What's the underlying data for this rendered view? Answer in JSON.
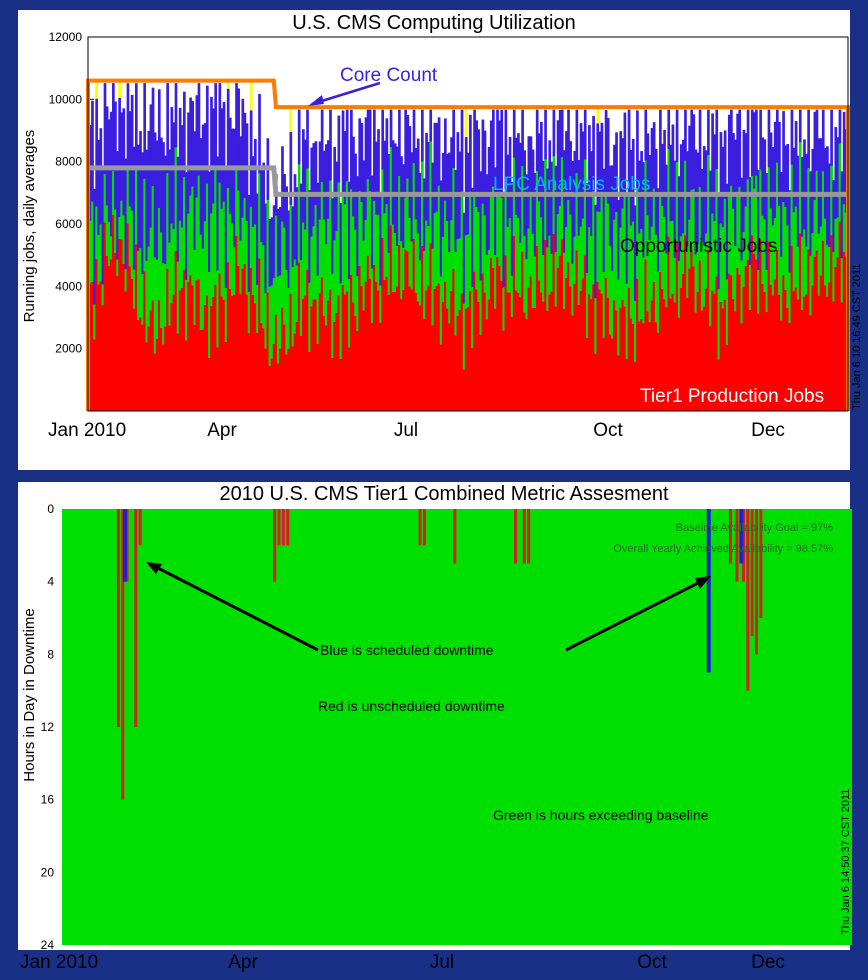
{
  "colors": {
    "background": "#1a2f86",
    "tier1": "#ff0000",
    "opportunistic": "#00e000",
    "lpc": "#3a1fe0",
    "grey_line": "#999999",
    "orange_line": "#ff7a00",
    "yellow": "#ffff00",
    "metric_green": "#00e000",
    "metric_red": "#d42020",
    "metric_blue": "#2020d0",
    "annotation_core": "#3a1fe0",
    "annotation_lpc": "#00b4ff"
  },
  "chart_data": [
    {
      "type": "area",
      "title": "U.S. CMS Computing Utilization",
      "ylabel": "Running jobs, daily averages",
      "xlabel": "",
      "xlim": [
        "2010-01-01",
        "2010-12-31"
      ],
      "ylim": [
        0,
        12000
      ],
      "yticks": [
        2000,
        4000,
        6000,
        8000,
        10000,
        12000
      ],
      "xticks": [
        "Jan 2010",
        "Apr",
        "Jul",
        "Oct",
        "Dec"
      ],
      "xtick_dates": [
        "2010-01-01",
        "2010-04-01",
        "2010-07-01",
        "2010-10-01",
        "2010-12-01"
      ],
      "timestamp": "Thu Jan  6 10:16:49 CST 2011",
      "annotations": {
        "core_count": "Core Count",
        "lpc": "LPC Analysis Jobs",
        "opportunistic": "Opportunistic Jobs",
        "tier1": "Tier1 Production Jobs"
      },
      "series": [
        {
          "name": "Tier1 Production Jobs",
          "x": [
            "2010-01-01",
            "2010-01-15",
            "2010-02-01",
            "2010-02-15",
            "2010-03-01",
            "2010-03-15",
            "2010-04-01",
            "2010-04-15",
            "2010-05-01",
            "2010-05-15",
            "2010-06-01",
            "2010-06-15",
            "2010-07-01",
            "2010-07-15",
            "2010-08-01",
            "2010-08-15",
            "2010-09-01",
            "2010-09-15",
            "2010-10-01",
            "2010-10-15",
            "2010-11-01",
            "2010-11-15",
            "2010-12-01",
            "2010-12-15",
            "2010-12-31"
          ],
          "values": [
            3500,
            5500,
            2500,
            4000,
            3000,
            4500,
            2000,
            3500,
            3000,
            4000,
            4500,
            3800,
            3000,
            4200,
            3800,
            4500,
            3500,
            2800,
            3600,
            4500,
            3200,
            4600,
            3800,
            4300,
            4800
          ]
        },
        {
          "name": "Opportunistic Jobs",
          "x": [
            "2010-01-01",
            "2010-01-15",
            "2010-02-01",
            "2010-02-15",
            "2010-03-01",
            "2010-03-15",
            "2010-04-01",
            "2010-04-15",
            "2010-05-01",
            "2010-05-15",
            "2010-06-01",
            "2010-06-15",
            "2010-07-01",
            "2010-07-15",
            "2010-08-01",
            "2010-08-15",
            "2010-09-01",
            "2010-09-15",
            "2010-10-01",
            "2010-10-15",
            "2010-11-01",
            "2010-11-15",
            "2010-12-01",
            "2010-12-15",
            "2010-12-31"
          ],
          "values": [
            2000,
            900,
            3000,
            2300,
            3200,
            1800,
            2700,
            2400,
            3000,
            2200,
            1800,
            2500,
            2600,
            2000,
            2300,
            1800,
            2400,
            2900,
            2600,
            1700,
            2800,
            1900,
            2500,
            2000,
            1500
          ]
        },
        {
          "name": "LPC Analysis Jobs",
          "x": [
            "2010-01-01",
            "2010-01-15",
            "2010-02-01",
            "2010-02-15",
            "2010-03-01",
            "2010-03-15",
            "2010-04-01",
            "2010-04-15",
            "2010-05-01",
            "2010-05-15",
            "2010-06-01",
            "2010-06-15",
            "2010-07-01",
            "2010-07-15",
            "2010-08-01",
            "2010-08-15",
            "2010-09-01",
            "2010-09-15",
            "2010-10-01",
            "2010-10-15",
            "2010-11-01",
            "2010-11-15",
            "2010-12-01",
            "2010-12-15",
            "2010-12-31"
          ],
          "values": [
            3300,
            3400,
            3700,
            3200,
            3400,
            3300,
            2000,
            2700,
            2500,
            2800,
            2700,
            2600,
            2900,
            2800,
            2600,
            2900,
            2800,
            2700,
            2600,
            2900,
            2700,
            2800,
            2500,
            2700,
            2600
          ]
        },
        {
          "name": "Core Count",
          "x": [
            "2010-01-01",
            "2010-03-31",
            "2010-04-01",
            "2010-12-31"
          ],
          "values": [
            10600,
            10600,
            9750,
            9750
          ]
        }
      ]
    },
    {
      "type": "bar",
      "title": "2010 U.S. CMS Tier1 Combined Metric Assesment",
      "ylabel": "Hours in Day in Downtime",
      "xlabel": "",
      "xlim": [
        "2010-01-01",
        "2010-12-31"
      ],
      "ylim": [
        24,
        0
      ],
      "yticks": [
        0,
        4,
        8,
        12,
        16,
        20,
        24
      ],
      "xticks": [
        "Jan 2010",
        "Apr",
        "Jul",
        "Oct",
        "Dec"
      ],
      "xtick_dates": [
        "2010-01-01",
        "2010-04-01",
        "2010-07-01",
        "2010-10-01",
        "2010-12-01"
      ],
      "timestamp": "Thu Jan  6 14:50:37 CST 2011",
      "annotations": {
        "goal": "Baseline Availability Goal = 97%",
        "achieved": "Overall Yearly Achieved Availability = 98.57%",
        "blue": "Blue is scheduled downtime",
        "red": "Red is unscheduled downtime",
        "green": "Green is hours exceeding baseline"
      },
      "series": [
        {
          "name": "Red is unscheduled downtime",
          "x": [
            "2010-01-27",
            "2010-01-29",
            "2010-01-31",
            "2010-02-04",
            "2010-02-06",
            "2010-04-09",
            "2010-04-11",
            "2010-04-13",
            "2010-04-15",
            "2010-06-15",
            "2010-06-17",
            "2010-07-01",
            "2010-07-29",
            "2010-08-02",
            "2010-08-04",
            "2010-11-05",
            "2010-11-08",
            "2010-11-11",
            "2010-11-13",
            "2010-11-15",
            "2010-11-17",
            "2010-11-19"
          ],
          "values": [
            12,
            16,
            4,
            12,
            2,
            4,
            2,
            2,
            2,
            2,
            2,
            3,
            3,
            3,
            3,
            3,
            4,
            4,
            10,
            7,
            8,
            6
          ]
        },
        {
          "name": "Blue is scheduled downtime",
          "x": [
            "2010-01-30",
            "2010-10-26",
            "2010-11-10"
          ],
          "values": [
            4,
            9,
            3
          ]
        }
      ]
    }
  ]
}
